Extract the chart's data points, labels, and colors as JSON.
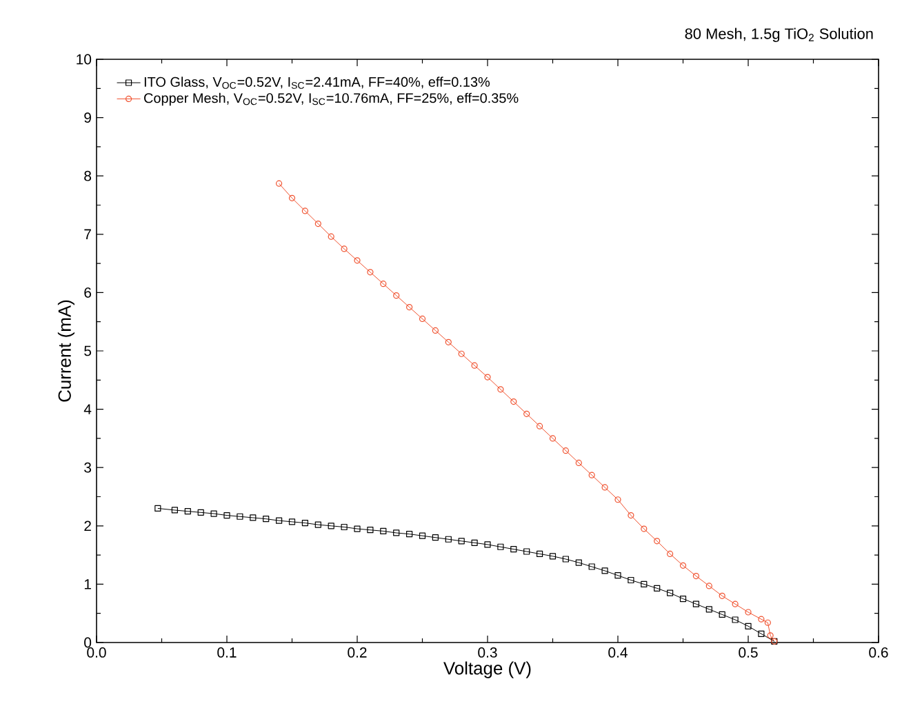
{
  "chart_data": {
    "type": "line",
    "title": "80 Mesh, 1.5g TiO$_{2}$ Solution",
    "xlabel": "Voltage (V)",
    "ylabel": "Current (mA)",
    "xlim": [
      0.0,
      0.6
    ],
    "xticks": [
      {
        "value": 0,
        "label": "0.0"
      },
      0.1,
      0.2,
      0.3,
      0.4,
      0.5,
      0.6
    ],
    "ylim": [
      0,
      10
    ],
    "yticks": [
      0,
      1,
      2,
      3,
      4,
      5,
      6,
      7,
      8,
      9,
      10
    ],
    "grid": false,
    "legend": "top left",
    "line_style": "solid",
    "series": [
      {
        "name": "ITO Glass, V$_{OC}$=0.52V, I$_{SC}$=2.41mA, FF=40%, eff=0.13%",
        "color": "#000000",
        "marker": "square",
        "x": [
          0.047,
          0.06,
          0.07,
          0.08,
          0.09,
          0.1,
          0.11,
          0.12,
          0.13,
          0.14,
          0.15,
          0.16,
          0.17,
          0.18,
          0.19,
          0.2,
          0.21,
          0.22,
          0.23,
          0.24,
          0.25,
          0.26,
          0.27,
          0.28,
          0.29,
          0.3,
          0.31,
          0.32,
          0.33,
          0.34,
          0.35,
          0.36,
          0.37,
          0.38,
          0.39,
          0.4,
          0.41,
          0.42,
          0.43,
          0.44,
          0.45,
          0.46,
          0.47,
          0.48,
          0.49,
          0.5,
          0.51,
          0.52
        ],
        "values": [
          2.3,
          2.27,
          2.25,
          2.23,
          2.21,
          2.18,
          2.16,
          2.14,
          2.12,
          2.09,
          2.07,
          2.05,
          2.02,
          2.0,
          1.98,
          1.95,
          1.93,
          1.91,
          1.88,
          1.86,
          1.83,
          1.8,
          1.77,
          1.74,
          1.71,
          1.68,
          1.64,
          1.6,
          1.56,
          1.52,
          1.48,
          1.43,
          1.37,
          1.3,
          1.23,
          1.15,
          1.07,
          1.0,
          0.93,
          0.85,
          0.75,
          0.66,
          0.57,
          0.48,
          0.39,
          0.28,
          0.15,
          0.02
        ]
      },
      {
        "name": "Copper Mesh, V$_{OC}$=0.52V, I$_{SC}$=10.76mA, FF=25%, eff=0.35%",
        "color": "#f0502d",
        "marker": "circle",
        "x": [
          0.14,
          0.15,
          0.16,
          0.17,
          0.18,
          0.19,
          0.2,
          0.21,
          0.22,
          0.23,
          0.24,
          0.25,
          0.26,
          0.27,
          0.28,
          0.29,
          0.3,
          0.31,
          0.32,
          0.33,
          0.34,
          0.35,
          0.36,
          0.37,
          0.38,
          0.39,
          0.4,
          0.41,
          0.42,
          0.43,
          0.44,
          0.45,
          0.46,
          0.47,
          0.48,
          0.49,
          0.5,
          0.51,
          0.515,
          0.517,
          0.52
        ],
        "values": [
          7.87,
          7.62,
          7.4,
          7.18,
          6.96,
          6.75,
          6.55,
          6.35,
          6.15,
          5.95,
          5.75,
          5.55,
          5.35,
          5.15,
          4.95,
          4.75,
          4.55,
          4.34,
          4.13,
          3.92,
          3.71,
          3.5,
          3.29,
          3.08,
          2.87,
          2.66,
          2.45,
          2.18,
          1.95,
          1.74,
          1.52,
          1.32,
          1.14,
          0.97,
          0.8,
          0.66,
          0.52,
          0.4,
          0.34,
          0.12,
          0.02
        ]
      }
    ]
  }
}
